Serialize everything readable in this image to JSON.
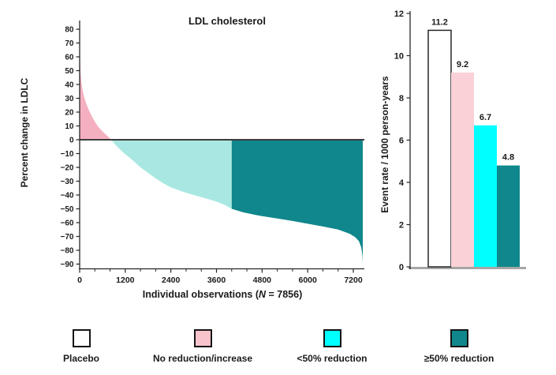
{
  "figure": {
    "background": "#ffffff",
    "axis_color": "#262626",
    "zero_line_color": "#3d3d3d",
    "baseline_color": "#a6a6a6"
  },
  "chart_data": [
    {
      "type": "area",
      "subtype": "waterfall-of-individual-observations",
      "title": "LDL cholesterol",
      "ylabel": "Percent change in LDLC",
      "xlabel": "Individual observations (N = 7856)",
      "xlabel_parts": {
        "prefix": "Individual observations (",
        "n": "N",
        "suffix": " = 7856)"
      },
      "n_observations": 7856,
      "x_axis": {
        "min": 0,
        "max": 7470,
        "major_ticks": [
          0,
          1200,
          2400,
          3600,
          4800,
          6000,
          7200
        ],
        "minor_tick_step": 400
      },
      "y_axis": {
        "min": -90,
        "max": 80,
        "tick_step": 10
      },
      "zero_line": true,
      "segments": [
        {
          "name": "No reduction/increase",
          "color": "#f5b0bf",
          "pct_range": [
            74,
            0
          ],
          "obs_range": [
            0,
            830
          ]
        },
        {
          "name": "<50% reduction",
          "color": "#a9e8e2",
          "pct_range": [
            0,
            -50
          ],
          "obs_range": [
            830,
            4000
          ]
        },
        {
          "name": "≥50% reduction",
          "color": "#0f878c",
          "pct_range": [
            -50,
            -90
          ],
          "obs_range": [
            4000,
            7450
          ]
        }
      ],
      "profile_points": [
        [
          0,
          74
        ],
        [
          8,
          62
        ],
        [
          18,
          52
        ],
        [
          30,
          47
        ],
        [
          45,
          42
        ],
        [
          70,
          37
        ],
        [
          100,
          33
        ],
        [
          140,
          29
        ],
        [
          190,
          25
        ],
        [
          250,
          21
        ],
        [
          320,
          17
        ],
        [
          400,
          13
        ],
        [
          500,
          9
        ],
        [
          620,
          5.5
        ],
        [
          720,
          3
        ],
        [
          830,
          0
        ],
        [
          950,
          -4
        ],
        [
          1100,
          -8
        ],
        [
          1200,
          -10.5
        ],
        [
          1400,
          -15
        ],
        [
          1600,
          -20
        ],
        [
          1800,
          -24
        ],
        [
          2000,
          -28
        ],
        [
          2200,
          -31.5
        ],
        [
          2400,
          -34.5
        ],
        [
          2700,
          -37.5
        ],
        [
          3000,
          -40
        ],
        [
          3300,
          -42.3
        ],
        [
          3600,
          -44.8
        ],
        [
          3800,
          -47
        ],
        [
          4000,
          -50
        ],
        [
          4300,
          -52.5
        ],
        [
          4600,
          -54.3
        ],
        [
          4800,
          -55.3
        ],
        [
          5200,
          -57
        ],
        [
          5600,
          -58.8
        ],
        [
          6000,
          -60.8
        ],
        [
          6400,
          -62.8
        ],
        [
          6800,
          -65
        ],
        [
          7100,
          -68
        ],
        [
          7250,
          -70.5
        ],
        [
          7350,
          -73.5
        ],
        [
          7410,
          -78
        ],
        [
          7440,
          -84
        ],
        [
          7450,
          -90
        ]
      ]
    },
    {
      "type": "bar",
      "ylabel": "Event rate / 1000 person-years",
      "categories": [
        "Placebo",
        "No reduction/increase",
        "<50% reduction",
        "≥50% reduction"
      ],
      "values": [
        11.2,
        9.2,
        6.7,
        4.8
      ],
      "value_labels": [
        "11.2",
        "9.2",
        "6.7",
        "4.8"
      ],
      "bar_colors": [
        "#ffffff",
        "#fad1d6",
        "#00ffff",
        "#0f878c"
      ],
      "bar_outline_color": "#262626",
      "ylim": [
        0,
        12
      ],
      "tick_step": 2,
      "grid": false
    }
  ],
  "legend": {
    "items": [
      {
        "label": "Placebo",
        "color": "#ffffff"
      },
      {
        "label": "No reduction/increase",
        "color": "#f8c3cb"
      },
      {
        "label": "<50% reduction",
        "color": "#00ffff"
      },
      {
        "label": "≥50% reduction",
        "color": "#0f878c"
      }
    ]
  }
}
